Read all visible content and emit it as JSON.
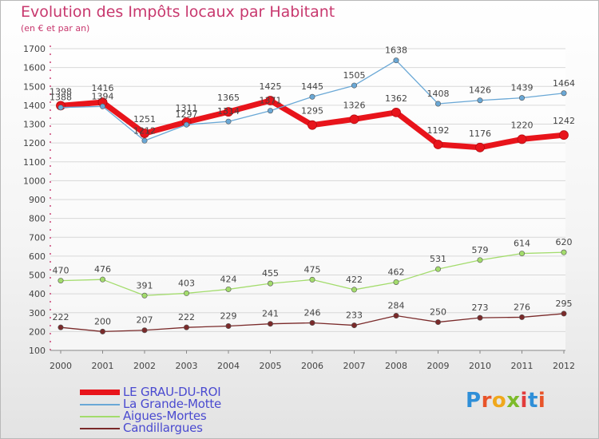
{
  "title": "Evolution des Impôts locaux par Habitant",
  "subtitle": "(en € et par an)",
  "logo": {
    "text": "Proxiti",
    "colors": [
      "#2f8fd8",
      "#e8542a",
      "#f0a81c",
      "#7dbb2a",
      "#e23c3c",
      "#2f8fd8",
      "#e8542a"
    ]
  },
  "colors": {
    "title": "#c8386e",
    "axis": "#c8386e",
    "grid": "#d8d8d8",
    "legend_text": "#4a4ad0",
    "label_text": "#444444"
  },
  "chart_data": {
    "type": "line",
    "title": "Evolution des Impôts locaux par Habitant",
    "subtitle": "(en € et par an)",
    "x": [
      "2000",
      "2001",
      "2002",
      "2003",
      "2004",
      "2005",
      "2006",
      "2007",
      "2008",
      "2009",
      "2010",
      "2011",
      "2012"
    ],
    "yticks": [
      "100",
      "200",
      "300",
      "400",
      "500",
      "600",
      "700",
      "800",
      "900",
      "1000",
      "1100",
      "1200",
      "1300",
      "1400",
      "1500",
      "1600",
      "1700"
    ],
    "ylim": [
      100,
      1700
    ],
    "grid": "horizontal",
    "legend_position": "bottom-left",
    "series": [
      {
        "name": "LE GRAU-DU-ROI",
        "color": "#e8141b",
        "width": 7,
        "marker": 5.5,
        "label_dy": -14,
        "values": [
          1398,
          1416,
          1251,
          1311,
          1365,
          1425,
          1295,
          1326,
          1362,
          1192,
          1176,
          1220,
          1242
        ],
        "labels": [
          "1398",
          "1416",
          "1251",
          "1311",
          "1365",
          "1425",
          "1295",
          "1326",
          "1362",
          "1192",
          "1176",
          "1220",
          "1242"
        ]
      },
      {
        "name": "La Grande-Motte",
        "color": "#6aa8d6",
        "width": 1.3,
        "marker": 3.2,
        "label_dy": -9,
        "values": [
          1388,
          1394,
          1212,
          1297,
          1314,
          1371,
          1445,
          1505,
          1638,
          1408,
          1426,
          1439,
          1464
        ],
        "labels": [
          "1388",
          "1394",
          "1212",
          "1297",
          "1314",
          "1371",
          "1445",
          "1505",
          "1638",
          "1408",
          "1426",
          "1439",
          "1464"
        ]
      },
      {
        "name": "Aigues-Mortes",
        "color": "#a3dc6c",
        "width": 1.3,
        "marker": 3.2,
        "label_dy": -9,
        "values": [
          470,
          476,
          391,
          403,
          424,
          455,
          475,
          422,
          462,
          531,
          579,
          614,
          620
        ],
        "labels": [
          "470",
          "476",
          "391",
          "403",
          "424",
          "455",
          "475",
          "422",
          "462",
          "531",
          "579",
          "614",
          "620"
        ]
      },
      {
        "name": "Candillargues",
        "color": "#7a2a2a",
        "width": 1.3,
        "marker": 3.2,
        "label_dy": -9,
        "values": [
          222,
          200,
          207,
          222,
          229,
          241,
          246,
          233,
          284,
          250,
          273,
          276,
          295
        ],
        "labels": [
          "222",
          "200",
          "207",
          "222",
          "229",
          "241",
          "246",
          "233",
          "284",
          "250",
          "273",
          "276",
          "295"
        ]
      }
    ]
  }
}
